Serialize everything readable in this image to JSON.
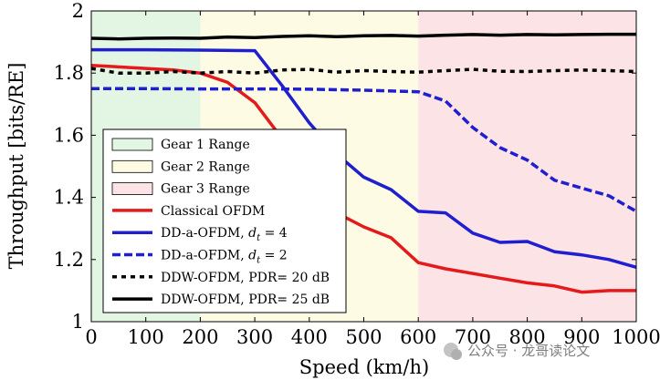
{
  "chart_data": {
    "type": "line",
    "xlabel": "Speed (km/h)",
    "ylabel": "Throughput [bits/RE]",
    "xlim": [
      0,
      1000
    ],
    "ylim": [
      1,
      2
    ],
    "xticks": [
      0,
      100,
      200,
      300,
      400,
      500,
      600,
      700,
      800,
      900,
      1000
    ],
    "yticks": [
      1,
      1.2,
      1.4,
      1.6,
      1.8,
      2
    ],
    "x_tick_labels": [
      "0",
      "100",
      "200",
      "300",
      "400",
      "500",
      "600",
      "700",
      "800",
      "900",
      "1000"
    ],
    "y_tick_labels": [
      "1",
      "1.2",
      "1.4",
      "1.6",
      "1.8",
      "2"
    ],
    "grid": false,
    "legend_position": "lower-left",
    "regions": [
      {
        "name": "Gear 1 Range",
        "x_start": 0,
        "x_end": 200,
        "color": "#e3f6e3"
      },
      {
        "name": "Gear 2 Range",
        "x_start": 200,
        "x_end": 600,
        "color": "#fdfbe4"
      },
      {
        "name": "Gear 3 Range",
        "x_start": 600,
        "x_end": 1000,
        "color": "#fce4e6"
      }
    ],
    "series": [
      {
        "name": "Classical OFDM",
        "color": "#e41a1c",
        "dash": "solid",
        "x": [
          0,
          100,
          150,
          200,
          250,
          300,
          350,
          400,
          450,
          500,
          550,
          600,
          650,
          700,
          750,
          800,
          850,
          900,
          950,
          1000
        ],
        "y": [
          1.825,
          1.815,
          1.81,
          1.8,
          1.77,
          1.705,
          1.59,
          1.44,
          1.35,
          1.305,
          1.27,
          1.19,
          1.17,
          1.155,
          1.14,
          1.125,
          1.115,
          1.095,
          1.1,
          1.1
        ]
      },
      {
        "name": "DD-a-OFDM, d_t = 4",
        "label_main": "DD-a-OFDM, ",
        "label_var": "d",
        "label_sub": "t",
        "label_tail": " = 4",
        "color": "#1f1fd0",
        "dash": "solid",
        "x": [
          0,
          100,
          200,
          300,
          350,
          400,
          450,
          500,
          550,
          600,
          650,
          700,
          750,
          800,
          850,
          900,
          950,
          1000
        ],
        "y": [
          1.875,
          1.875,
          1.874,
          1.872,
          1.76,
          1.64,
          1.54,
          1.465,
          1.425,
          1.355,
          1.35,
          1.285,
          1.255,
          1.258,
          1.225,
          1.215,
          1.2,
          1.175
        ]
      },
      {
        "name": "DD-a-OFDM, d_t = 2",
        "label_main": "DD-a-OFDM, ",
        "label_var": "d",
        "label_sub": "t",
        "label_tail": " = 2",
        "color": "#1f1fd0",
        "dash": "dashed",
        "x": [
          0,
          100,
          200,
          300,
          400,
          500,
          600,
          650,
          700,
          750,
          800,
          850,
          900,
          950,
          1000
        ],
        "y": [
          1.75,
          1.75,
          1.749,
          1.749,
          1.748,
          1.745,
          1.74,
          1.71,
          1.625,
          1.56,
          1.52,
          1.455,
          1.43,
          1.405,
          1.355
        ]
      },
      {
        "name": "DDW-OFDM, PDR= 20 dB",
        "color": "#000000",
        "dash": "dotted",
        "x": [
          0,
          50,
          100,
          150,
          200,
          250,
          300,
          350,
          400,
          450,
          500,
          550,
          600,
          650,
          700,
          750,
          800,
          850,
          900,
          950,
          1000
        ],
        "y": [
          1.815,
          1.8,
          1.8,
          1.805,
          1.8,
          1.805,
          1.8,
          1.81,
          1.812,
          1.803,
          1.808,
          1.805,
          1.803,
          1.808,
          1.812,
          1.806,
          1.805,
          1.808,
          1.81,
          1.808,
          1.805
        ]
      },
      {
        "name": "DDW-OFDM, PDR= 25 dB",
        "color": "#000000",
        "dash": "solid",
        "x": [
          0,
          50,
          100,
          150,
          200,
          250,
          300,
          350,
          400,
          450,
          500,
          550,
          600,
          650,
          700,
          750,
          800,
          850,
          900,
          950,
          1000
        ],
        "y": [
          1.912,
          1.91,
          1.912,
          1.913,
          1.912,
          1.916,
          1.914,
          1.918,
          1.92,
          1.917,
          1.92,
          1.921,
          1.919,
          1.922,
          1.924,
          1.922,
          1.924,
          1.923,
          1.924,
          1.925,
          1.925
        ]
      }
    ]
  },
  "watermark": "公众号 · 龙哥读论文"
}
